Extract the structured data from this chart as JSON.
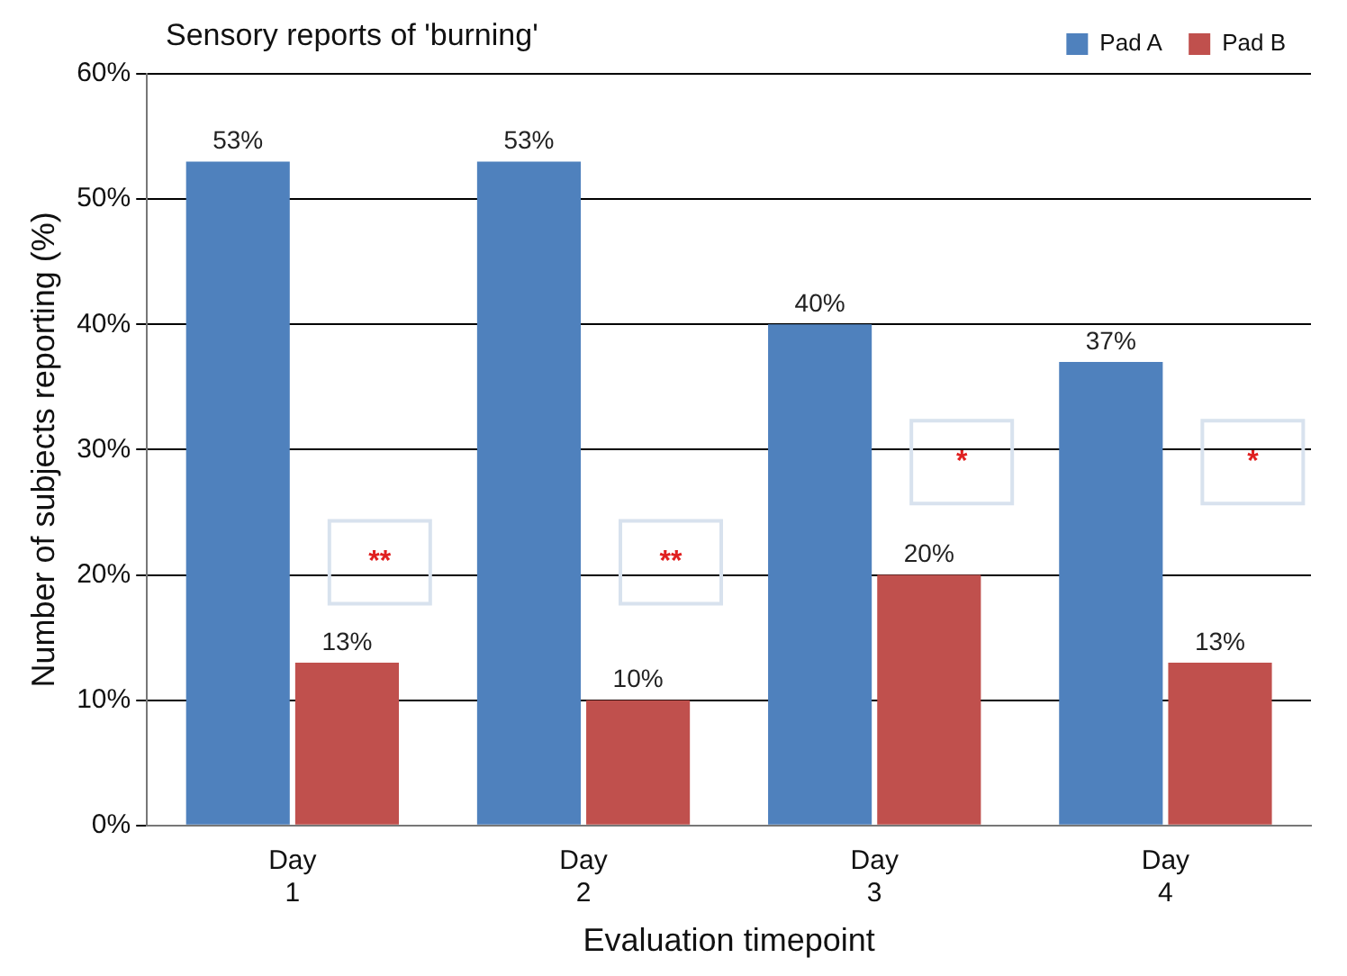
{
  "chart_data": {
    "type": "bar",
    "title": "Sensory reports of 'burning'",
    "xlabel": "Evaluation timepoint",
    "ylabel": "Number of subjects reporting (%)",
    "categories": [
      "Day 1",
      "Day 2",
      "Day 3",
      "Day 4"
    ],
    "series": [
      {
        "name": "Pad A",
        "color": "#4f81bd",
        "values": [
          53,
          53,
          40,
          37
        ],
        "value_labels": [
          "53%",
          "53%",
          "40%",
          "37%"
        ]
      },
      {
        "name": "Pad B",
        "color": "#c0504d",
        "values": [
          13,
          10,
          20,
          13
        ],
        "value_labels": [
          "13%",
          "10%",
          "20%",
          "13%"
        ]
      }
    ],
    "ylim": [
      0,
      60
    ],
    "yticks": [
      {
        "value": 0,
        "label": "0%"
      },
      {
        "value": 10,
        "label": "10%"
      },
      {
        "value": 20,
        "label": "20%"
      },
      {
        "value": 30,
        "label": "30%"
      },
      {
        "value": 40,
        "label": "40%"
      },
      {
        "value": 50,
        "label": "50%"
      },
      {
        "value": 60,
        "label": "60%"
      }
    ],
    "grid": "y",
    "legend": "top right",
    "annotations": [
      {
        "text": "**",
        "x": "Day 1",
        "y": 21
      },
      {
        "text": "**",
        "x": "Day 2",
        "y": 21
      },
      {
        "text": "*",
        "x": "Day 3",
        "y": 29
      },
      {
        "text": "*",
        "x": "Day 4",
        "y": 29
      }
    ]
  }
}
